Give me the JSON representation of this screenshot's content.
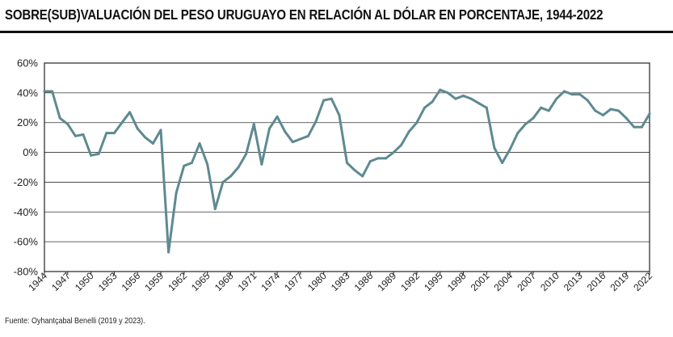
{
  "title": "SOBRE(SUB)VALUACIÓN DEL PESO URUGUAYO EN RELACIÓN AL DÓLAR EN PORCENTAJE, 1944-2022",
  "source": "Fuente: Oyhantçabal Benelli (2019 y 2023).",
  "chart_data": {
    "type": "line",
    "ylim": [
      -80,
      60
    ],
    "yticks": [
      60,
      40,
      20,
      0,
      -20,
      -40,
      -60,
      -80
    ],
    "ytick_labels": [
      "60%",
      "40%",
      "20%",
      "0%",
      "-20%",
      "-40%",
      "-60%",
      "-80%"
    ],
    "xlim": [
      1944,
      2022
    ],
    "xticks": [
      1944,
      1947,
      1950,
      1953,
      1956,
      1959,
      1962,
      1965,
      1968,
      1971,
      1974,
      1977,
      1980,
      1983,
      1986,
      1989,
      1992,
      1995,
      1998,
      2001,
      2004,
      2007,
      2010,
      2013,
      2016,
      2019,
      2022
    ],
    "grid": true,
    "line_color": "#5e8a91",
    "series": [
      {
        "x": [
          1944,
          1945,
          1946,
          1947,
          1948,
          1949,
          1950,
          1951,
          1952,
          1953,
          1954,
          1955,
          1956,
          1957,
          1958,
          1959,
          1960,
          1961,
          1962,
          1963,
          1964,
          1965,
          1966,
          1967,
          1968,
          1969,
          1970,
          1971,
          1972,
          1973,
          1974,
          1975,
          1976,
          1977,
          1978,
          1979,
          1980,
          1981,
          1982,
          1983,
          1984,
          1985,
          1986,
          1987,
          1988,
          1989,
          1990,
          1991,
          1992,
          1993,
          1994,
          1995,
          1996,
          1997,
          1998,
          1999,
          2000,
          2001,
          2002,
          2003,
          2004,
          2005,
          2006,
          2007,
          2008,
          2009,
          2010,
          2011,
          2012,
          2013,
          2014,
          2015,
          2016,
          2017,
          2018,
          2019,
          2020,
          2021,
          2022
        ],
        "values": [
          41,
          41,
          23,
          19,
          11,
          12,
          -2,
          -1,
          13,
          13,
          20,
          27,
          16,
          10,
          6,
          15,
          -67,
          -27,
          -9,
          -7,
          6,
          -8,
          -38,
          -20,
          -16,
          -10,
          -1,
          19,
          -8,
          16,
          24,
          14,
          7,
          9,
          11,
          21,
          35,
          36,
          25,
          -7,
          -12,
          -16,
          -6,
          -4,
          -4,
          0,
          5,
          14,
          20,
          30,
          34,
          42,
          40,
          36,
          38,
          36,
          33,
          30,
          3,
          -7,
          2,
          13,
          19,
          23,
          30,
          28,
          36,
          41,
          39,
          39,
          35,
          28,
          25,
          29,
          28,
          23,
          17,
          17,
          26
        ]
      }
    ]
  }
}
